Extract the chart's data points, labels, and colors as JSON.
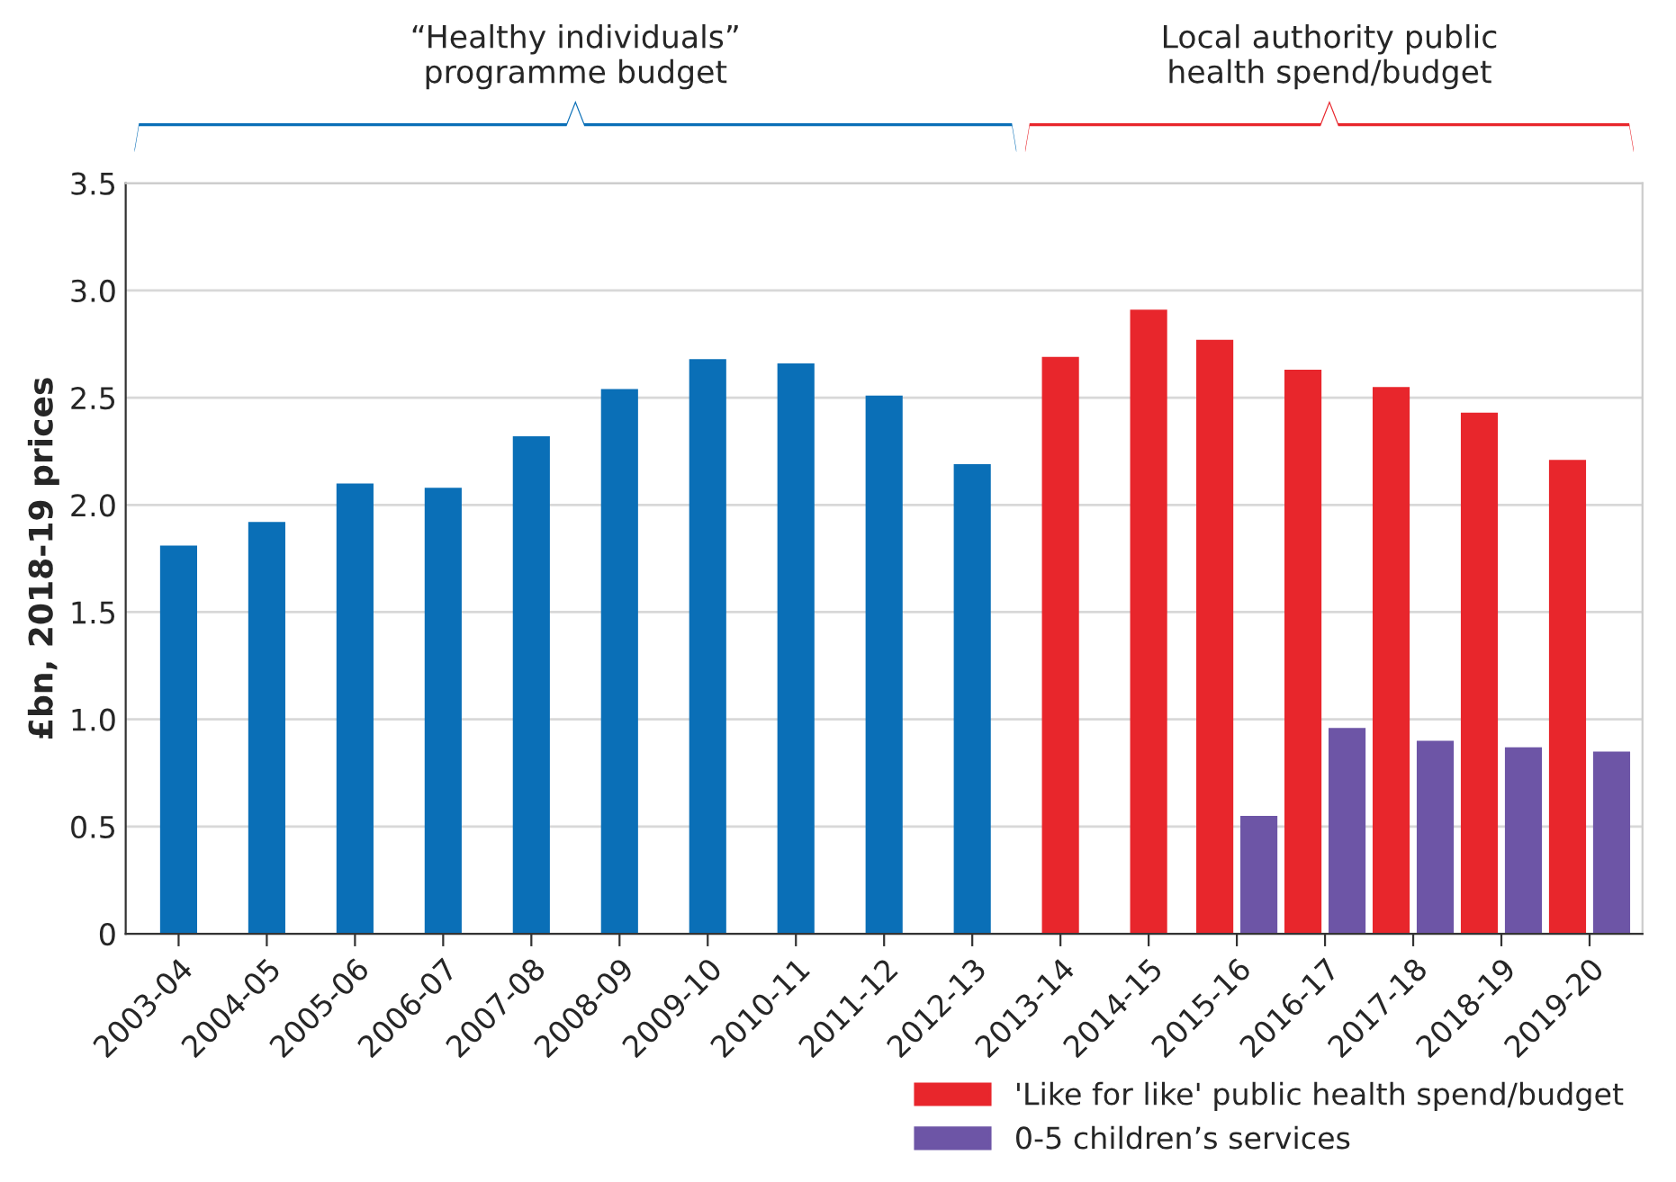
{
  "chart_data": {
    "type": "bar",
    "ylabel": "£bn, 2018-19 prices",
    "categories": [
      "2003-04",
      "2004-05",
      "2005-06",
      "2006-07",
      "2007-08",
      "2008-09",
      "2009-10",
      "2010-11",
      "2011-12",
      "2012-13",
      "2013-14",
      "2014-15",
      "2015-16",
      "2016-17",
      "2017-18",
      "2018-19",
      "2019-20"
    ],
    "series": [
      {
        "color": "#0a6fb7",
        "values": [
          1.81,
          1.92,
          2.1,
          2.08,
          2.32,
          2.54,
          2.68,
          2.66,
          2.51,
          2.19,
          null,
          null,
          null,
          null,
          null,
          null,
          null
        ]
      },
      {
        "name": "'Like for like' public health spend/budget",
        "color": "#e8262c",
        "values": [
          null,
          null,
          null,
          null,
          null,
          null,
          null,
          null,
          null,
          null,
          2.69,
          2.91,
          2.77,
          2.63,
          2.55,
          2.43,
          2.21
        ]
      },
      {
        "name": "0-5 children’s services",
        "color": "#6d55a6",
        "values": [
          null,
          null,
          null,
          null,
          null,
          null,
          null,
          null,
          null,
          null,
          null,
          null,
          0.55,
          0.96,
          0.9,
          0.87,
          0.85
        ]
      }
    ],
    "ylim": [
      0,
      3.5
    ],
    "yticks": [
      0,
      0.5,
      {
        "value": 1,
        "label": "1.0"
      },
      1.5,
      {
        "value": 2,
        "label": "2.0"
      },
      2.5,
      {
        "value": 3,
        "label": "3.0"
      },
      3.5
    ],
    "grid": "y",
    "legend": "bottom right",
    "annotations": [
      "“Healthy individuals”\nprogramme budget",
      "Local authority public\nhealth spend/budget"
    ]
  }
}
